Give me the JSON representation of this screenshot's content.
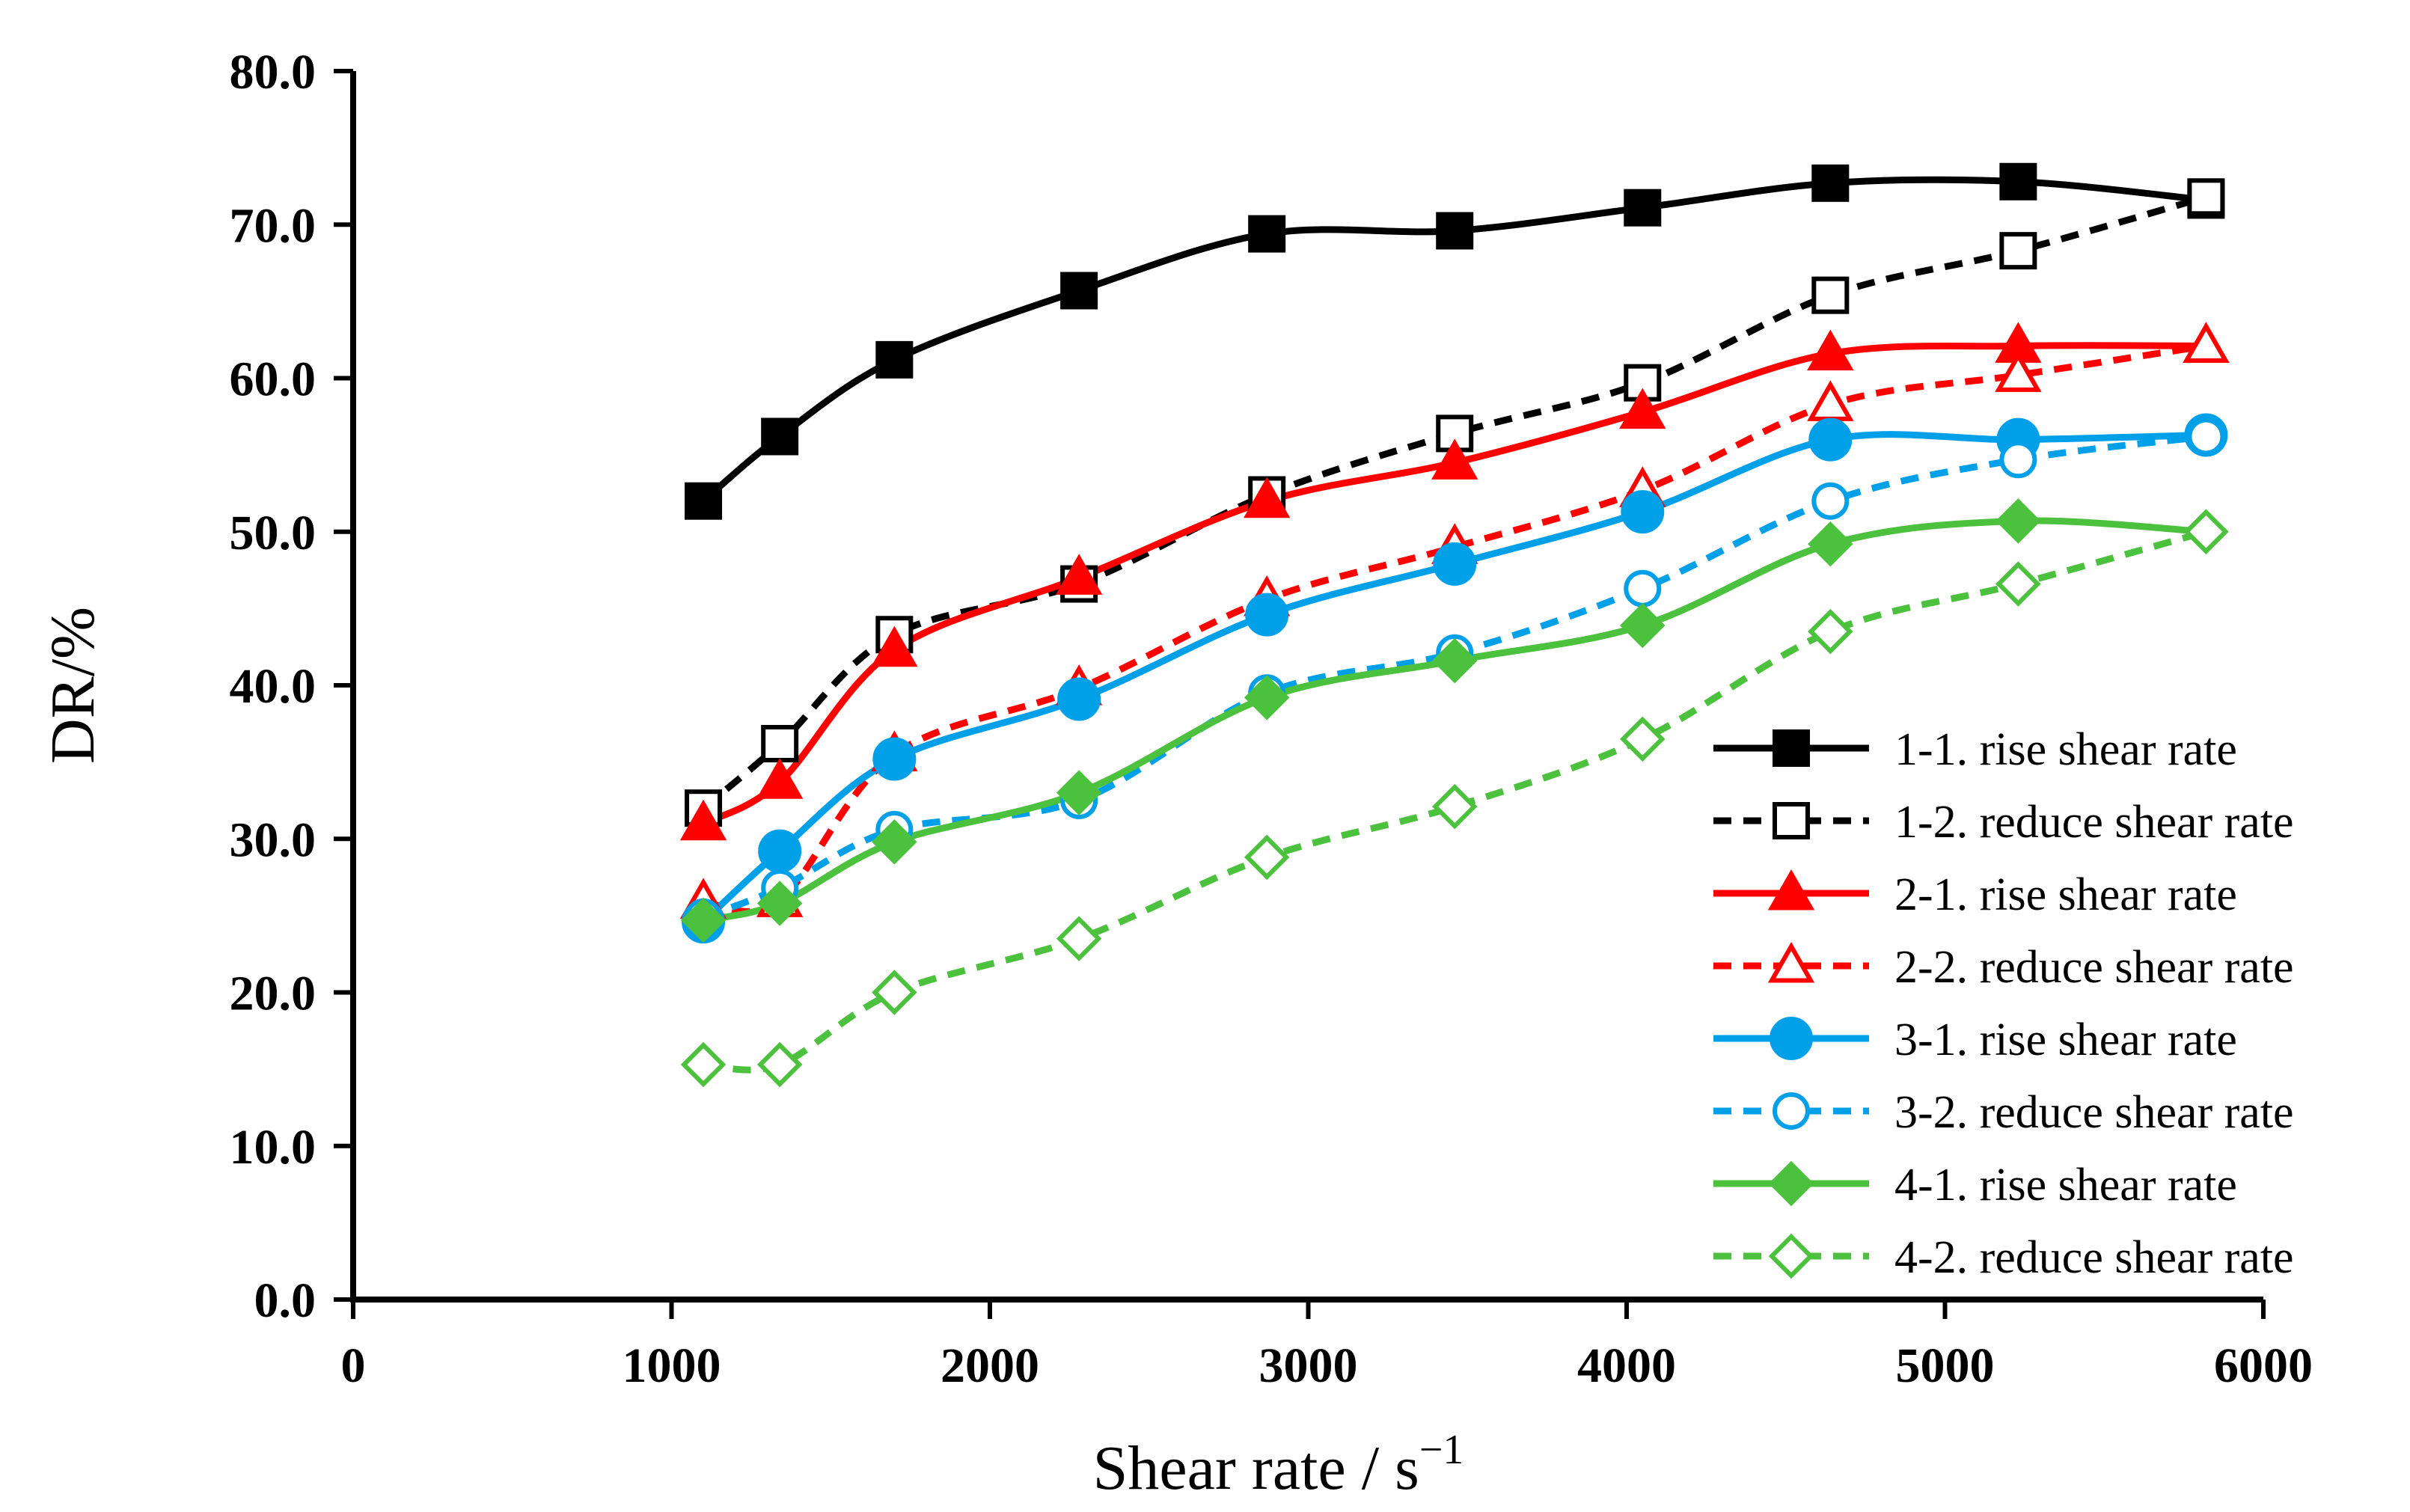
{
  "chart_data": {
    "type": "line",
    "title": "",
    "xlabel": "Shear rate / s",
    "xlabel_sup": "−1",
    "ylabel": "DR/%",
    "xlim": [
      0,
      6000
    ],
    "ylim": [
      0,
      80
    ],
    "grid": false,
    "legend_position": "bottom-right",
    "x_ticks": [
      "0",
      "1000",
      "2000",
      "3000",
      "4000",
      "5000",
      "6000"
    ],
    "y_ticks": [
      "0.0",
      "10.0",
      "20.0",
      "30.0",
      "40.0",
      "50.0",
      "60.0",
      "70.0",
      "80.0"
    ],
    "x": [
      1100,
      1340,
      1700,
      2280,
      2870,
      3460,
      4050,
      4640,
      5230,
      5820
    ],
    "series": [
      {
        "name": "1-1. rise shear rate",
        "color": "#000000",
        "dashed": false,
        "marker": "square",
        "filled": true,
        "values": [
          52.0,
          56.2,
          61.2,
          65.7,
          69.4,
          69.6,
          71.1,
          72.7,
          72.8,
          71.6
        ]
      },
      {
        "name": "1-2. reduce shear rate",
        "color": "#000000",
        "dashed": true,
        "marker": "square",
        "filled": false,
        "values": [
          32.0,
          36.2,
          43.3,
          46.6,
          52.4,
          56.4,
          59.7,
          65.4,
          68.3,
          71.8
        ]
      },
      {
        "name": "2-1. rise shear rate",
        "color": "#ff0000",
        "dashed": false,
        "marker": "triangle",
        "filled": true,
        "values": [
          31.0,
          33.7,
          42.3,
          47.0,
          52.0,
          54.5,
          57.8,
          61.6,
          62.1,
          62.1
        ]
      },
      {
        "name": "2-2. reduce shear rate",
        "color": "#ff0000",
        "dashed": true,
        "marker": "triangle",
        "filled": false,
        "values": [
          25.9,
          26.0,
          35.5,
          39.8,
          45.6,
          49.0,
          52.7,
          58.3,
          60.2,
          62.1
        ]
      },
      {
        "name": "3-1. rise shear rate",
        "color": "#00a0e9",
        "dashed": false,
        "marker": "circle",
        "filled": true,
        "values": [
          24.6,
          29.2,
          35.2,
          39.1,
          44.6,
          47.9,
          51.3,
          56.0,
          56.0,
          56.3
        ]
      },
      {
        "name": "3-2. reduce shear rate",
        "color": "#00a0e9",
        "dashed": true,
        "marker": "circle",
        "filled": false,
        "values": [
          24.9,
          26.8,
          30.6,
          32.5,
          39.5,
          42.1,
          46.3,
          52.0,
          54.7,
          56.2
        ]
      },
      {
        "name": "4-1. rise shear rate",
        "color": "#4cc13d",
        "dashed": false,
        "marker": "diamond",
        "filled": true,
        "values": [
          24.7,
          25.8,
          29.8,
          33.0,
          39.2,
          41.6,
          43.9,
          49.2,
          50.7,
          50.0
        ]
      },
      {
        "name": "4-2. reduce shear rate",
        "color": "#4cc13d",
        "dashed": true,
        "marker": "diamond",
        "filled": false,
        "values": [
          15.3,
          15.3,
          20.0,
          23.5,
          28.8,
          32.1,
          36.5,
          43.5,
          46.6,
          50.0
        ]
      }
    ]
  }
}
